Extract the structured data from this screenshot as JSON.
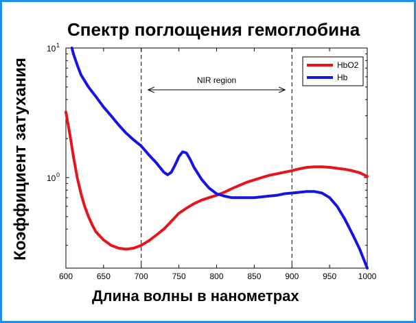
{
  "chart_data": {
    "type": "line",
    "title": "Спектр поглощения гемоглобина",
    "xlabel": "Длина волны в нанометрах",
    "ylabel": "Коэффициент затухания",
    "xlim": [
      600,
      1000
    ],
    "ylim": [
      0.2,
      10
    ],
    "yscale": "log",
    "x_ticks": [
      "600",
      "650",
      "700",
      "750",
      "800",
      "850",
      "900",
      "950",
      "1000"
    ],
    "y_ticks": [
      {
        "base": "10",
        "exp": "0",
        "value": 1
      },
      {
        "base": "10",
        "exp": "1",
        "value": 10
      }
    ],
    "grid": false,
    "legend": "top-right",
    "annotation": {
      "text": "NIR region",
      "from": 700,
      "to": 900
    },
    "series": [
      {
        "name": "HbO2",
        "color": "#e8141c",
        "x": [
          600,
          605,
          610,
          615,
          620,
          625,
          630,
          635,
          640,
          650,
          660,
          670,
          680,
          690,
          700,
          710,
          720,
          730,
          740,
          750,
          760,
          770,
          780,
          790,
          800,
          810,
          820,
          830,
          840,
          850,
          860,
          870,
          880,
          890,
          900,
          910,
          920,
          930,
          940,
          950,
          960,
          970,
          980,
          990,
          1000
        ],
        "values": [
          3.2,
          2.2,
          1.45,
          1.0,
          0.75,
          0.6,
          0.5,
          0.43,
          0.38,
          0.33,
          0.3,
          0.285,
          0.28,
          0.285,
          0.3,
          0.325,
          0.36,
          0.4,
          0.46,
          0.53,
          0.58,
          0.63,
          0.67,
          0.7,
          0.73,
          0.77,
          0.82,
          0.87,
          0.92,
          0.96,
          1.0,
          1.04,
          1.07,
          1.1,
          1.13,
          1.17,
          1.2,
          1.21,
          1.21,
          1.2,
          1.18,
          1.16,
          1.13,
          1.09,
          1.02
        ]
      },
      {
        "name": "Hb",
        "color": "#1414e6",
        "x": [
          608,
          610,
          615,
          620,
          630,
          640,
          650,
          660,
          670,
          680,
          690,
          700,
          710,
          720,
          730,
          735,
          740,
          745,
          750,
          755,
          760,
          765,
          770,
          780,
          790,
          800,
          810,
          820,
          830,
          840,
          850,
          860,
          870,
          880,
          890,
          900,
          910,
          920,
          930,
          940,
          950,
          960,
          970,
          980,
          990,
          1000
        ],
        "values": [
          10.0,
          9.0,
          7.4,
          6.2,
          5.0,
          4.2,
          3.5,
          3.0,
          2.55,
          2.2,
          1.95,
          1.75,
          1.5,
          1.3,
          1.1,
          1.05,
          1.1,
          1.25,
          1.45,
          1.58,
          1.55,
          1.38,
          1.2,
          0.97,
          0.83,
          0.75,
          0.72,
          0.7,
          0.7,
          0.7,
          0.7,
          0.71,
          0.72,
          0.73,
          0.75,
          0.76,
          0.77,
          0.78,
          0.78,
          0.76,
          0.7,
          0.6,
          0.48,
          0.37,
          0.28,
          0.2
        ]
      }
    ]
  }
}
